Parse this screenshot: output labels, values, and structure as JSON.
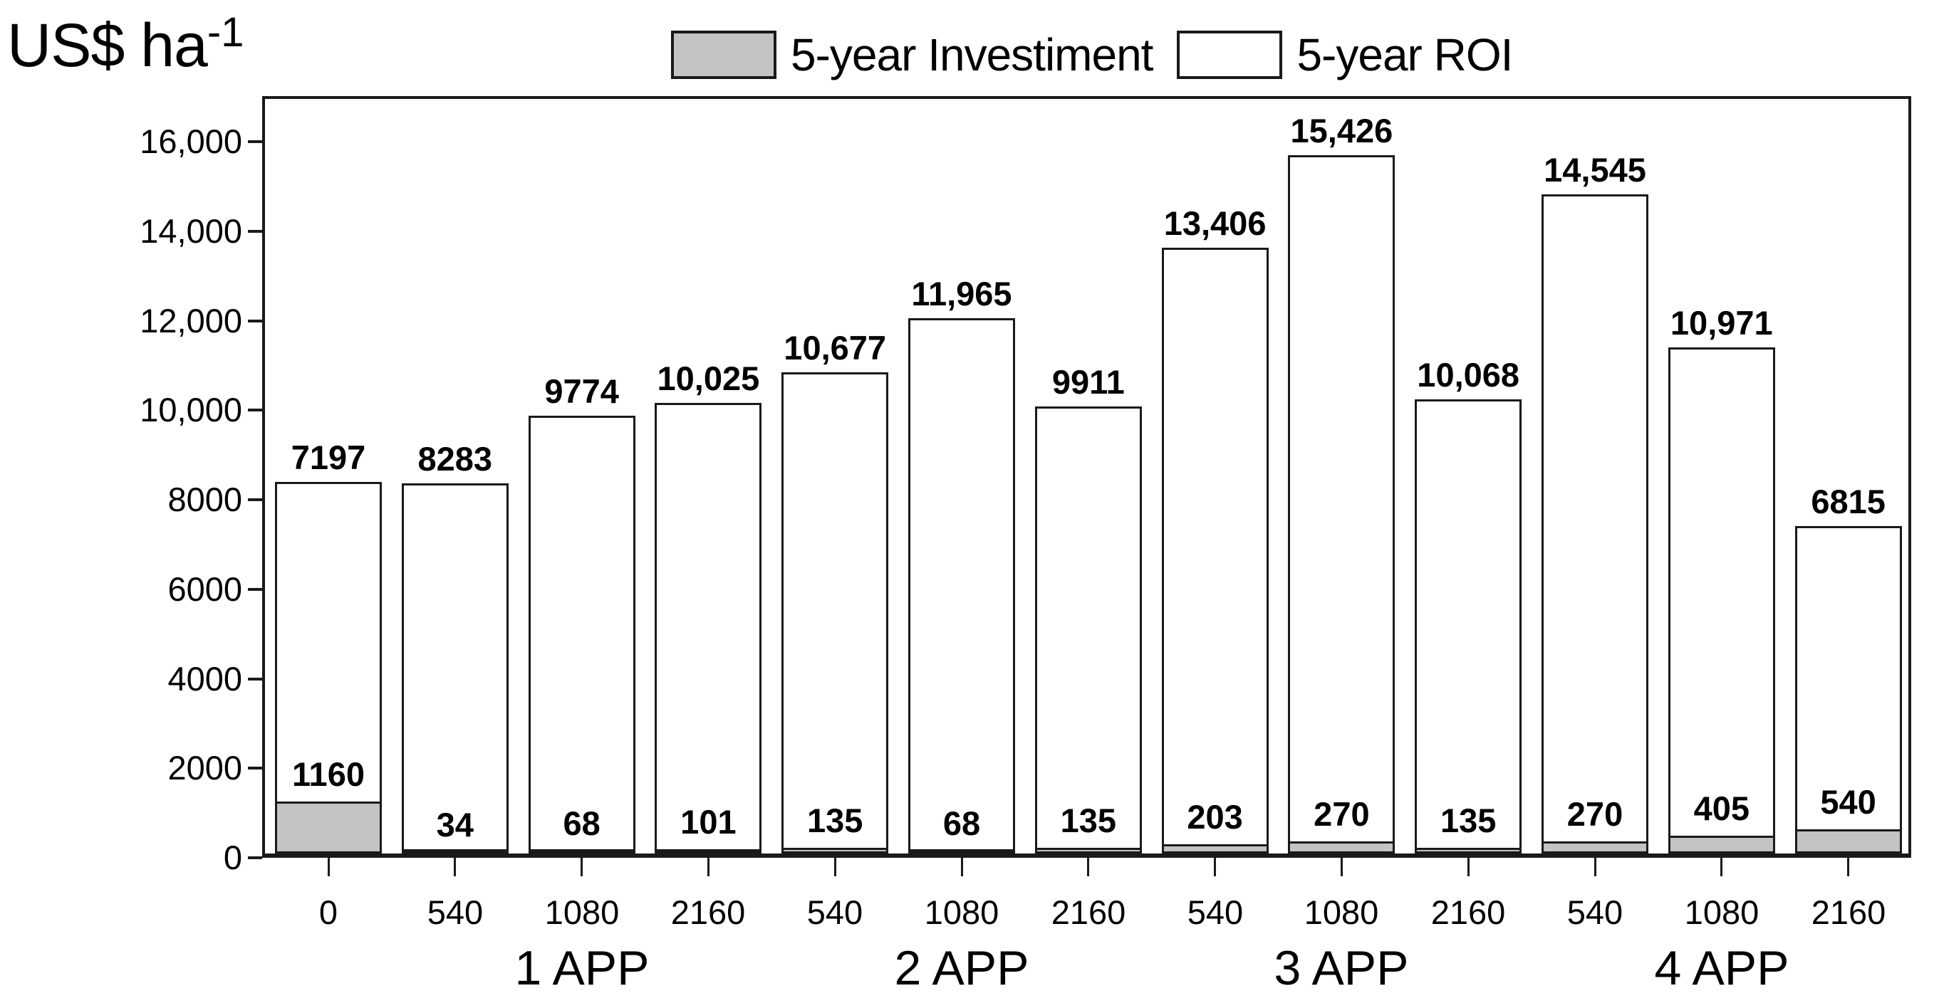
{
  "page": {
    "background": "#ffffff"
  },
  "axis_unit": {
    "text": "US$ ha",
    "sup": "-1"
  },
  "legend": {
    "items": [
      {
        "label": "5-year Investiment",
        "swatch_color": "#c3c3c3"
      },
      {
        "label": "5-year ROI",
        "swatch_color": "#ffffff"
      }
    ]
  },
  "colors": {
    "investment_fill": "#c3c3c3",
    "roi_fill": "#ffffff",
    "line": "#1a1a1a",
    "text": "#000000"
  },
  "chart_data": {
    "type": "bar",
    "stacked": true,
    "title": "US$ ha-1 : 5-year Investment and 5-year ROI by number of applications and dose",
    "ylabel": "US$ ha-1",
    "xlabel": "",
    "ylim": [
      0,
      17000
    ],
    "grid": false,
    "legend_position": "top",
    "y_ticks": [
      {
        "label": "0",
        "value": 0
      },
      {
        "label": "2000",
        "value": 2000
      },
      {
        "label": "4000",
        "value": 4000
      },
      {
        "label": "6000",
        "value": 6000
      },
      {
        "label": "8000",
        "value": 8000
      },
      {
        "label": "10,000",
        "value": 10000
      },
      {
        "label": "12,000",
        "value": 12000
      },
      {
        "label": "14,000",
        "value": 14000
      },
      {
        "label": "16,000",
        "value": 16000
      }
    ],
    "series": [
      {
        "name": "5-year Investiment",
        "values": [
          1160,
          34,
          68,
          101,
          135,
          68,
          135,
          203,
          270,
          135,
          270,
          405,
          540
        ]
      },
      {
        "name": "5-year ROI",
        "values": [
          7197,
          8283,
          9774,
          10025,
          10677,
          11965,
          9911,
          13406,
          15426,
          10068,
          14545,
          10971,
          6815
        ]
      }
    ],
    "bars": [
      {
        "x_label": "0",
        "group": "",
        "investment": 1160,
        "roi": 7197,
        "investment_label": "1160",
        "roi_label": "7197"
      },
      {
        "x_label": "540",
        "group": "1 APP",
        "investment": 34,
        "roi": 8283,
        "investment_label": "34",
        "roi_label": "8283"
      },
      {
        "x_label": "1080",
        "group": "1 APP",
        "investment": 68,
        "roi": 9774,
        "investment_label": "68",
        "roi_label": "9774"
      },
      {
        "x_label": "2160",
        "group": "1 APP",
        "investment": 101,
        "roi": 10025,
        "investment_label": "101",
        "roi_label": "10,025"
      },
      {
        "x_label": "540",
        "group": "2 APP",
        "investment": 135,
        "roi": 10677,
        "investment_label": "135",
        "roi_label": "10,677"
      },
      {
        "x_label": "1080",
        "group": "2 APP",
        "investment": 68,
        "roi": 11965,
        "investment_label": "68",
        "roi_label": "11,965"
      },
      {
        "x_label": "2160",
        "group": "2 APP",
        "investment": 135,
        "roi": 9911,
        "investment_label": "135",
        "roi_label": "9911"
      },
      {
        "x_label": "540",
        "group": "3 APP",
        "investment": 203,
        "roi": 13406,
        "investment_label": "203",
        "roi_label": "13,406"
      },
      {
        "x_label": "1080",
        "group": "3 APP",
        "investment": 270,
        "roi": 15426,
        "investment_label": "270",
        "roi_label": "15,426"
      },
      {
        "x_label": "2160",
        "group": "3 APP",
        "investment": 135,
        "roi": 10068,
        "investment_label": "135",
        "roi_label": "10,068"
      },
      {
        "x_label": "540",
        "group": "4 APP",
        "investment": 270,
        "roi": 14545,
        "investment_label": "270",
        "roi_label": "14,545"
      },
      {
        "x_label": "1080",
        "group": "4 APP",
        "investment": 405,
        "roi": 10971,
        "investment_label": "405",
        "roi_label": "10,971"
      },
      {
        "x_label": "2160",
        "group": "4 APP",
        "investment": 540,
        "roi": 6815,
        "investment_label": "540",
        "roi_label": "6815"
      }
    ],
    "groups": [
      {
        "label": "1 APP",
        "bar_indices": [
          1,
          2,
          3
        ]
      },
      {
        "label": "2 APP",
        "bar_indices": [
          4,
          5,
          6
        ]
      },
      {
        "label": "3 APP",
        "bar_indices": [
          7,
          8,
          9
        ]
      },
      {
        "label": "4 APP",
        "bar_indices": [
          10,
          11,
          12
        ]
      }
    ]
  }
}
